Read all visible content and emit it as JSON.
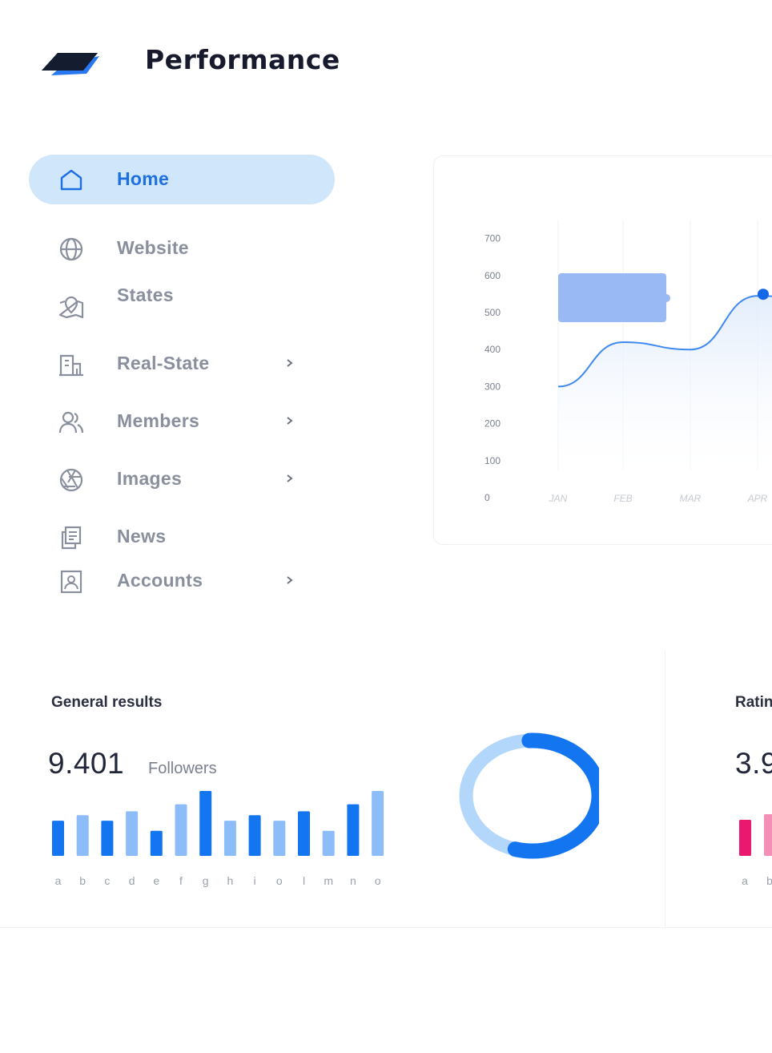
{
  "header": {
    "brand": "Performance",
    "logo_icon": "stacked-layers-logo"
  },
  "sidebar": {
    "items": [
      {
        "label": "Home",
        "icon": "home-icon",
        "active": true,
        "has_chevron": false
      },
      {
        "label": "Website",
        "icon": "globe-icon",
        "active": false,
        "has_chevron": false
      },
      {
        "label": "States",
        "icon": "map-pin-icon",
        "active": false,
        "has_chevron": false
      },
      {
        "label": "Real-State",
        "icon": "building-icon",
        "active": false,
        "has_chevron": true
      },
      {
        "label": "Members",
        "icon": "users-icon",
        "active": false,
        "has_chevron": true
      },
      {
        "label": "Images",
        "icon": "aperture-icon",
        "active": false,
        "has_chevron": true
      },
      {
        "label": "News",
        "icon": "news-icon",
        "active": false,
        "has_chevron": false
      },
      {
        "label": "Accounts",
        "icon": "account-icon",
        "active": false,
        "has_chevron": true
      }
    ]
  },
  "chart_data": [
    {
      "type": "line",
      "x": [
        "JAN",
        "FEB",
        "MAR",
        "APR"
      ],
      "y_ticks": [
        "700",
        "600",
        "500",
        "400",
        "300",
        "200",
        "100",
        "0"
      ],
      "series": [
        {
          "values": [
            300,
            420,
            400,
            545
          ]
        }
      ],
      "ylim": [
        0,
        700
      ],
      "grid": "vertical",
      "tooltip": "shown near peak"
    },
    {
      "type": "bar",
      "categories": [
        "a",
        "b",
        "c",
        "d",
        "e",
        "f",
        "g",
        "h",
        "i",
        "o",
        "l",
        "m",
        "n",
        "o"
      ],
      "values": [
        45,
        52,
        45,
        57,
        32,
        66,
        83,
        45,
        52,
        45,
        57,
        32,
        66,
        83
      ],
      "colors": [
        "#1376f0",
        "#8cbdf8"
      ]
    },
    {
      "type": "pie",
      "style": "donut",
      "values": [
        55,
        45
      ],
      "colors": [
        "#1376f0",
        "#b3d6fb"
      ]
    }
  ],
  "general": {
    "title": "General results",
    "value": "9.401",
    "label": "Followers"
  },
  "rating": {
    "title": "Ratin",
    "value": "3.9",
    "categories": [
      "a",
      "b"
    ],
    "colors": [
      "#e8196f",
      "#f48fb8"
    ]
  },
  "colors": {
    "accent": "#1e6fe0",
    "active_bg": "#cfe6fb",
    "muted": "#8a8f9e"
  }
}
